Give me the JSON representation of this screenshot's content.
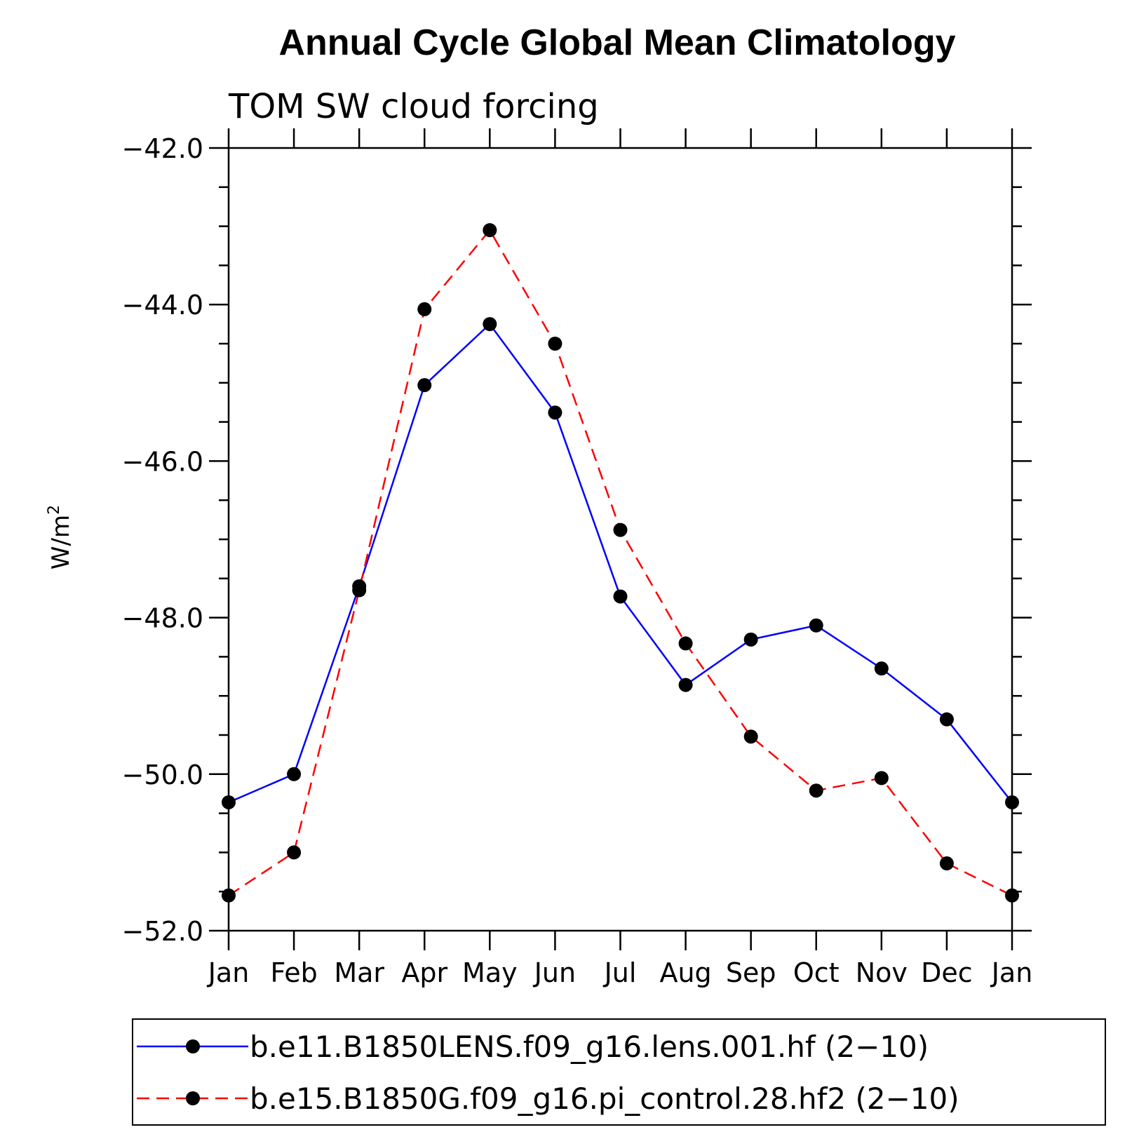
{
  "chart_data": {
    "type": "line",
    "title": "Annual Cycle Global Mean Climatology",
    "subtitle": "TOM SW cloud forcing",
    "xlabel": "",
    "ylabel": "W/m",
    "ylabel_superscript": "2",
    "categories": [
      "Jan",
      "Feb",
      "Mar",
      "Apr",
      "May",
      "Jun",
      "Jul",
      "Aug",
      "Sep",
      "Oct",
      "Nov",
      "Dec",
      "Jan"
    ],
    "ylim": [
      -52.0,
      -42.0
    ],
    "yticks": [
      -52.0,
      -50.0,
      -48.0,
      -46.0,
      -44.0,
      -42.0
    ],
    "ytick_labels": [
      "−52.0",
      "−50.0",
      "−48.0",
      "−46.0",
      "−44.0",
      "−42.0"
    ],
    "grid": false,
    "legend_position": "bottom",
    "series": [
      {
        "name": "b.e11.B1850LENS.f09_g16.lens.001.hf (2−10)",
        "color": "#0000ff",
        "dash": "solid",
        "values": [
          -50.36,
          -50.0,
          -47.6,
          -45.03,
          -44.25,
          -45.38,
          -47.73,
          -48.86,
          -48.28,
          -48.1,
          -48.65,
          -49.3,
          -50.36
        ]
      },
      {
        "name": "b.e15.B1850G.f09_g16.pi_control.28.hf2 (2−10)",
        "color": "#ff0000",
        "dash": "dashed",
        "values": [
          -51.55,
          -51.0,
          -47.65,
          -44.06,
          -43.05,
          -44.5,
          -46.88,
          -48.33,
          -49.52,
          -50.21,
          -50.05,
          -51.14,
          -51.55
        ]
      }
    ]
  }
}
